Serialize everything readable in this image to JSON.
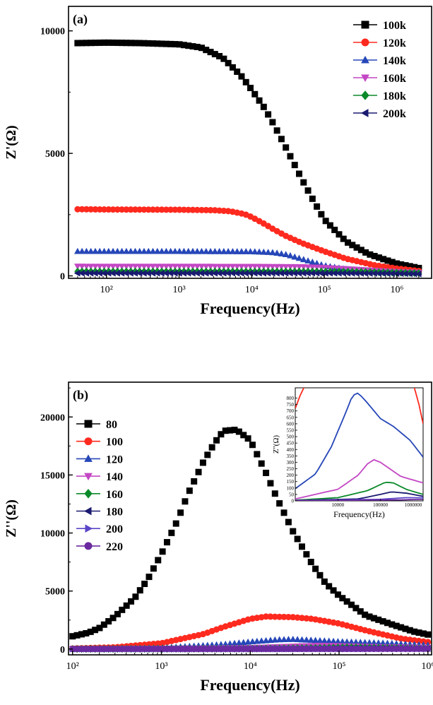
{
  "chart_data": [
    {
      "panel_label": "(a)",
      "type": "scatter",
      "x_scale": "log",
      "xlabel": "Frequency(Hz)",
      "ylabel": "Z'(Ω)",
      "xlim": [
        30,
        3000000
      ],
      "ylim": [
        -100,
        11000
      ],
      "yticks": [
        "0",
        "5000",
        "10000"
      ],
      "xticks": [
        "10²",
        "10³",
        "10⁴",
        "10⁵",
        "10⁶"
      ],
      "legend_position": "top-right",
      "series": [
        {
          "name": "100k",
          "color": "#000000",
          "marker": "square",
          "x": [
            40,
            100,
            300,
            1000,
            2000,
            4000,
            7000,
            10000,
            15000,
            20000,
            30000,
            50000,
            70000,
            100000,
            200000,
            400000,
            700000,
            1000000,
            2000000
          ],
          "y": [
            9500,
            9520,
            9500,
            9450,
            9320,
            8900,
            8200,
            7600,
            6850,
            6200,
            5200,
            3900,
            3100,
            2300,
            1400,
            900,
            650,
            500,
            320
          ]
        },
        {
          "name": "120k",
          "color": "#ff2a1f",
          "marker": "circle",
          "x": [
            40,
            100,
            1000,
            3000,
            5000,
            8000,
            10000,
            15000,
            20000,
            30000,
            50000,
            100000,
            200000,
            500000,
            1000000,
            2000000
          ],
          "y": [
            2720,
            2710,
            2700,
            2680,
            2640,
            2520,
            2400,
            2120,
            1900,
            1620,
            1330,
            1000,
            700,
            430,
            300,
            200
          ]
        },
        {
          "name": "140k",
          "color": "#2647b8",
          "marker": "triangle-up",
          "x": [
            40,
            1000,
            10000,
            20000,
            30000,
            50000,
            100000,
            200000,
            500000,
            1000000,
            2000000
          ],
          "y": [
            1000,
            1000,
            990,
            950,
            870,
            680,
            420,
            270,
            190,
            160,
            140
          ]
        },
        {
          "name": "160k",
          "color": "#c347c4",
          "marker": "triangle-down",
          "x": [
            40,
            10000,
            50000,
            100000,
            200000,
            500000,
            1000000,
            2000000
          ],
          "y": [
            390,
            385,
            370,
            340,
            290,
            220,
            170,
            140
          ]
        },
        {
          "name": "180k",
          "color": "#0b8a2a",
          "marker": "diamond",
          "x": [
            40,
            100000,
            300000,
            1000000,
            2000000
          ],
          "y": [
            180,
            178,
            165,
            130,
            110
          ]
        },
        {
          "name": "200k",
          "color": "#1a1a70",
          "marker": "triangle-left",
          "x": [
            40,
            200000,
            1000000,
            2000000
          ],
          "y": [
            110,
            108,
            95,
            80
          ]
        }
      ]
    },
    {
      "panel_label": "(b)",
      "type": "scatter",
      "x_scale": "log",
      "xlabel": "Frequency(Hz)",
      "ylabel": "Z''(Ω)",
      "xlim": [
        90,
        1100000
      ],
      "ylim": [
        -500,
        23000
      ],
      "yticks": [
        "0",
        "5000",
        "10000",
        "15000",
        "20000"
      ],
      "xticks": [
        "10²",
        "10³",
        "10⁴",
        "10⁵",
        "10⁶"
      ],
      "legend_position": "top-left",
      "series": [
        {
          "name": "80",
          "color": "#000000",
          "marker": "square",
          "x": [
            100,
            150,
            200,
            300,
            500,
            700,
            1000,
            1500,
            2000,
            3000,
            4000,
            5000,
            7000,
            10000,
            15000,
            20000,
            30000,
            50000,
            70000,
            100000,
            200000,
            400000,
            700000,
            1000000
          ],
          "y": [
            1100,
            1400,
            1800,
            2800,
            4400,
            6000,
            8200,
            11000,
            13400,
            16200,
            17800,
            18800,
            18900,
            18000,
            15200,
            13000,
            10200,
            7300,
            5700,
            4600,
            2900,
            2100,
            1500,
            1250
          ]
        },
        {
          "name": "100",
          "color": "#ff2a1f",
          "marker": "circle",
          "x": [
            100,
            300,
            1000,
            3000,
            5000,
            10000,
            15000,
            30000,
            50000,
            100000,
            200000,
            500000,
            1000000
          ],
          "y": [
            50,
            150,
            500,
            1300,
            1900,
            2600,
            2800,
            2750,
            2600,
            2200,
            1600,
            900,
            600
          ]
        },
        {
          "name": "120",
          "color": "#2647b8",
          "marker": "triangle-up",
          "x": [
            100,
            1000,
            5000,
            10000,
            20000,
            30000,
            50000,
            100000,
            300000,
            1000000
          ],
          "y": [
            20,
            100,
            400,
            620,
            800,
            840,
            760,
            640,
            520,
            340
          ]
        },
        {
          "name": "140",
          "color": "#c347c4",
          "marker": "triangle-down",
          "x": [
            100,
            10000,
            30000,
            60000,
            100000,
            300000,
            1000000
          ],
          "y": [
            10,
            120,
            240,
            320,
            290,
            200,
            140
          ]
        },
        {
          "name": "160",
          "color": "#0b8a2a",
          "marker": "diamond",
          "x": [
            100,
            10000,
            50000,
            130000,
            300000,
            1000000
          ],
          "y": [
            5,
            30,
            90,
            150,
            110,
            40
          ]
        },
        {
          "name": "180",
          "color": "#1a1a70",
          "marker": "triangle-left",
          "x": [
            100,
            30000,
            150000,
            300000,
            1000000
          ],
          "y": [
            3,
            20,
            70,
            75,
            40
          ]
        },
        {
          "name": "200",
          "color": "#5a46c8",
          "marker": "triangle-right",
          "x": [
            100,
            100000,
            400000,
            1000000
          ],
          "y": [
            2,
            15,
            30,
            28
          ]
        },
        {
          "name": "220",
          "color": "#6b2aa0",
          "marker": "circle",
          "x": [
            100,
            300000,
            1000000
          ],
          "y": [
            1,
            10,
            15
          ]
        }
      ],
      "inset": {
        "xlabel": "Frequency(Hz)",
        "ylabel": "Z''(Ω)",
        "xlim": [
          1000,
          1000000
        ],
        "ylim": [
          0,
          880
        ],
        "yticks": [
          "0",
          "50",
          "100",
          "150",
          "200",
          "250",
          "300",
          "350",
          "400",
          "450",
          "500",
          "550",
          "600",
          "650",
          "700",
          "750",
          "800"
        ],
        "xticks": [
          "10000",
          "100000",
          "1000000"
        ],
        "series": [
          {
            "name": "100",
            "color": "#ff2a1f",
            "x": [
              1000,
              1300,
              1700
            ],
            "y": [
              720,
              820,
              900
            ]
          },
          {
            "name": "100",
            "color": "#ff2a1f",
            "x": [
              600000,
              800000,
              1000000
            ],
            "y": [
              900,
              750,
              600
            ]
          },
          {
            "name": "120",
            "color": "#2647b8",
            "x": [
              1000,
              3000,
              7000,
              15000,
              22000,
              30000,
              50000,
              100000,
              200000,
              500000,
              1000000
            ],
            "y": [
              95,
              210,
              420,
              680,
              820,
              840,
              760,
              640,
              580,
              470,
              340
            ]
          },
          {
            "name": "140",
            "color": "#c347c4",
            "x": [
              1000,
              10000,
              30000,
              50000,
              70000,
              100000,
              300000,
              1000000
            ],
            "y": [
              15,
              90,
              200,
              290,
              320,
              300,
              190,
              140
            ]
          },
          {
            "name": "160",
            "color": "#0b8a2a",
            "x": [
              1000,
              10000,
              50000,
              130000,
              200000,
              400000,
              1000000
            ],
            "y": [
              5,
              25,
              80,
              145,
              140,
              90,
              50
            ]
          },
          {
            "name": "180",
            "color": "#1a1a70",
            "x": [
              1000,
              30000,
              100000,
              180000,
              400000,
              1000000
            ],
            "y": [
              3,
              15,
              50,
              70,
              60,
              35
            ]
          },
          {
            "name": "200",
            "color": "#5a46c8",
            "x": [
              1000,
              100000,
              400000,
              1000000
            ],
            "y": [
              2,
              12,
              25,
              24
            ]
          },
          {
            "name": "220",
            "color": "#6b2aa0",
            "x": [
              1000,
              300000,
              1000000
            ],
            "y": [
              1,
              8,
              12
            ]
          }
        ]
      }
    }
  ]
}
